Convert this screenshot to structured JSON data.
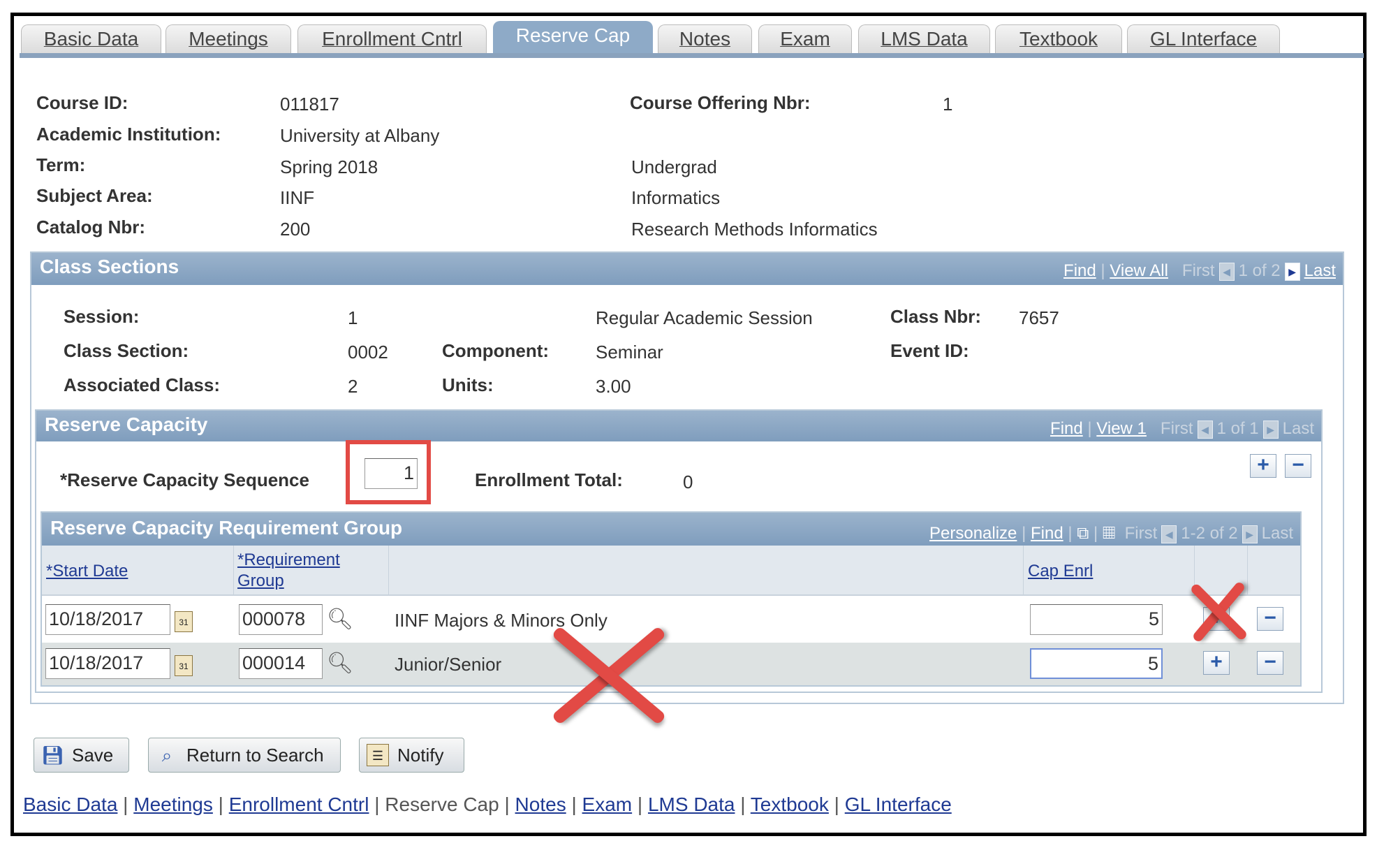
{
  "tabs": [
    {
      "label": "Basic Data"
    },
    {
      "label": "Meetings"
    },
    {
      "label": "Enrollment Cntrl"
    },
    {
      "label": "Reserve Cap",
      "active": true
    },
    {
      "label": "Notes"
    },
    {
      "label": "Exam"
    },
    {
      "label": "LMS Data"
    },
    {
      "label": "Textbook"
    },
    {
      "label": "GL Interface"
    }
  ],
  "course": {
    "course_id_label": "Course ID:",
    "course_id": "011817",
    "offering_label": "Course Offering Nbr:",
    "offering": "1",
    "institution_label": "Academic Institution:",
    "institution": "University at Albany",
    "term_label": "Term:",
    "term": "Spring 2018",
    "career": "Undergrad",
    "subject_label": "Subject Area:",
    "subject": "IINF",
    "subject_descr": "Informatics",
    "catalog_label": "Catalog Nbr:",
    "catalog": "200",
    "catalog_descr": "Research Methods Informatics"
  },
  "class_sections": {
    "title": "Class Sections",
    "find": "Find",
    "view_all": "View All",
    "first": "First",
    "count": "1 of 2",
    "last": "Last",
    "session_label": "Session:",
    "session": "1",
    "session_descr": "Regular Academic Session",
    "class_nbr_label": "Class Nbr:",
    "class_nbr": "7657",
    "section_label": "Class Section:",
    "section": "0002",
    "component_label": "Component:",
    "component": "Seminar",
    "event_label": "Event ID:",
    "assoc_label": "Associated Class:",
    "assoc": "2",
    "units_label": "Units:",
    "units": "3.00"
  },
  "reserve_capacity": {
    "title": "Reserve Capacity",
    "find": "Find",
    "view": "View 1",
    "first": "First",
    "count": "1 of 1",
    "last": "Last",
    "seq_label": "*Reserve Capacity Sequence",
    "seq": "1",
    "enroll_total_label": "Enrollment Total:",
    "enroll_total": "0",
    "add": "+",
    "remove": "−"
  },
  "req_group": {
    "title": "Reserve Capacity Requirement Group",
    "personalize": "Personalize",
    "find": "Find",
    "first": "First",
    "count": "1-2 of 2",
    "last": "Last",
    "col_start": "*Start Date",
    "col_req1": "*Requirement",
    "col_req2": "Group",
    "col_cap": "Cap Enrl",
    "rows": [
      {
        "start": "10/18/2017",
        "group": "000078",
        "descr": "IINF Majors & Minors Only",
        "cap": "5"
      },
      {
        "start": "10/18/2017",
        "group": "000014",
        "descr": "Junior/Senior",
        "cap": "5"
      }
    ],
    "add": "+",
    "remove": "−"
  },
  "buttons": {
    "save": "Save",
    "return": "Return to Search",
    "notify": "Notify"
  },
  "footer": [
    {
      "label": "Basic Data",
      "link": true
    },
    {
      "label": "Meetings",
      "link": true
    },
    {
      "label": "Enrollment Cntrl",
      "link": true
    },
    {
      "label": "Reserve Cap",
      "link": false
    },
    {
      "label": "Notes",
      "link": true
    },
    {
      "label": "Exam",
      "link": true
    },
    {
      "label": "LMS Data",
      "link": true
    },
    {
      "label": "Textbook",
      "link": true
    },
    {
      "label": "GL Interface",
      "link": true
    }
  ],
  "colors": {
    "header": "#8eaac7",
    "link": "#1f3a93",
    "annotation": "#e24a45"
  }
}
